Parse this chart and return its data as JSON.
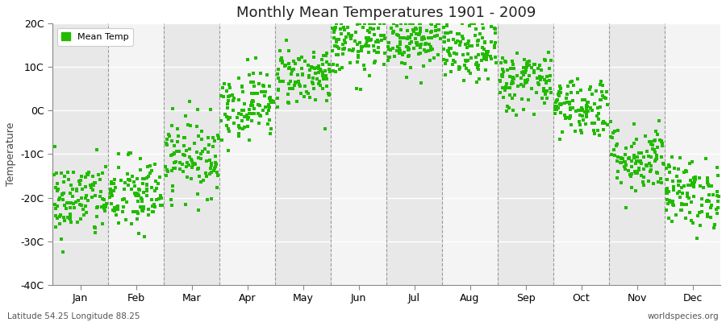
{
  "title": "Monthly Mean Temperatures 1901 - 2009",
  "ylabel": "Temperature",
  "bottom_left_label": "Latitude 54.25 Longitude 88.25",
  "bottom_right_label": "worldspecies.org",
  "legend_label": "Mean Temp",
  "dot_color": "#22bb00",
  "bg_color": "#ffffff",
  "band_dark": "#e8e8e8",
  "band_light": "#f4f4f4",
  "ylim": [
    -40,
    20
  ],
  "yticks": [
    -40,
    -30,
    -20,
    -10,
    0,
    10,
    20
  ],
  "ytick_labels": [
    "-40C",
    "-30C",
    "-20C",
    "-10C",
    "0C",
    "10C",
    "20C"
  ],
  "months": [
    "Jan",
    "Feb",
    "Mar",
    "Apr",
    "May",
    "Jun",
    "Jul",
    "Aug",
    "Sep",
    "Oct",
    "Nov",
    "Dec"
  ],
  "month_means": [
    -20.5,
    -19.5,
    -10.5,
    1.5,
    8.0,
    15.0,
    16.5,
    13.5,
    7.0,
    1.0,
    -11.0,
    -19.0
  ],
  "month_stds": [
    4.5,
    4.5,
    4.5,
    4.0,
    3.5,
    3.5,
    3.5,
    3.5,
    3.5,
    3.5,
    4.0,
    4.0
  ],
  "n_points": 109,
  "dot_size": 5,
  "seed": 42
}
